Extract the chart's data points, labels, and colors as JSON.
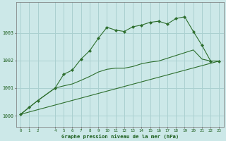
{
  "xlabel": "Graphe pression niveau de la mer (hPa)",
  "bg_color": "#cce8e8",
  "grid_color": "#aad0d0",
  "line_color": "#2d6e2d",
  "xlim": [
    -0.5,
    23.5
  ],
  "ylim": [
    999.6,
    1004.1
  ],
  "yticks": [
    1000,
    1001,
    1002,
    1003
  ],
  "xticks": [
    0,
    1,
    2,
    4,
    5,
    6,
    7,
    8,
    9,
    10,
    11,
    12,
    13,
    14,
    15,
    16,
    17,
    18,
    19,
    20,
    21,
    22,
    23
  ],
  "series1_x": [
    0,
    1,
    2,
    4,
    5,
    6,
    7,
    8,
    9,
    10,
    11,
    12,
    13,
    14,
    15,
    16,
    17,
    18,
    19,
    20,
    21,
    22,
    23
  ],
  "series1_y": [
    1000.05,
    1000.3,
    1000.55,
    1001.0,
    1001.5,
    1001.65,
    1002.05,
    1002.35,
    1002.8,
    1003.2,
    1003.1,
    1003.05,
    1003.22,
    1003.28,
    1003.38,
    1003.42,
    1003.32,
    1003.52,
    1003.58,
    1003.05,
    1002.55,
    1001.98,
    1001.98
  ],
  "series2_x": [
    0,
    23
  ],
  "series2_y": [
    1000.05,
    1001.98
  ],
  "series3_x": [
    0,
    1,
    2,
    4,
    5,
    6,
    7,
    8,
    9,
    10,
    11,
    12,
    13,
    14,
    15,
    16,
    17,
    18,
    19,
    20,
    21,
    22,
    23
  ],
  "series3_y": [
    1000.05,
    1000.3,
    1000.55,
    1001.0,
    1001.08,
    1001.15,
    1001.28,
    1001.42,
    1001.58,
    1001.68,
    1001.72,
    1001.72,
    1001.78,
    1001.88,
    1001.94,
    1001.98,
    1002.08,
    1002.18,
    1002.28,
    1002.38,
    1002.05,
    1001.98,
    1001.98
  ]
}
